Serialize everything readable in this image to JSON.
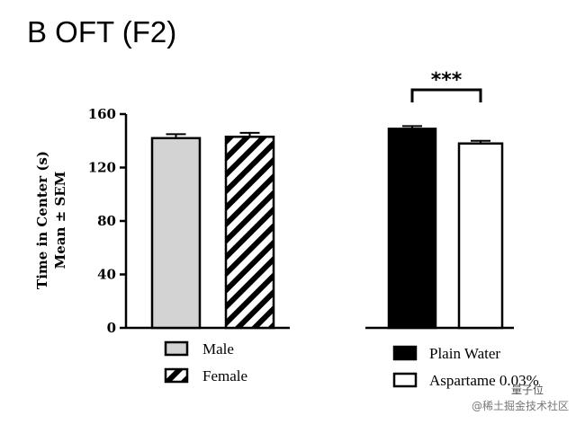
{
  "panel_title": "B OFT (F2)",
  "watermark": {
    "line1": "量子位",
    "line2": "@稀土掘金技术社区"
  },
  "chart_data": {
    "type": "bar",
    "ylabel_line1": "Time in Center (s)",
    "ylabel_line2": "Mean ± SEM",
    "ylim": [
      0,
      160
    ],
    "yticks": [
      0,
      40,
      80,
      120,
      160
    ],
    "grid": false,
    "groups": [
      {
        "bars": [
          {
            "name": "Male",
            "value": 142,
            "error": 3,
            "fill": "#d3d3d3",
            "pattern": "none"
          },
          {
            "name": "Female",
            "value": 143,
            "error": 3,
            "fill": "#ffffff",
            "pattern": "diagonal-stripes"
          }
        ],
        "significance": ""
      },
      {
        "bars": [
          {
            "name": "Plain Water",
            "value": 149,
            "error": 2,
            "fill": "#000000",
            "pattern": "none"
          },
          {
            "name": "Aspartame 0.03%",
            "value": 138,
            "error": 2,
            "fill": "#ffffff",
            "pattern": "none"
          }
        ],
        "significance": "***"
      }
    ]
  }
}
